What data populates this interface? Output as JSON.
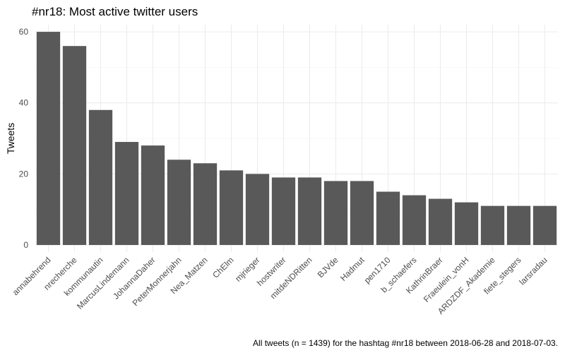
{
  "chart_data": {
    "type": "bar",
    "title": "#nr18: Most active twitter users",
    "xlabel": "",
    "ylabel": "Tweets",
    "caption": "All tweets (n = 1439) for the hashtag #nr18 between 2018-06-28 and 2018-07-03.",
    "categories": [
      "annabehrend",
      "nrecherche",
      "kommunautin",
      "MarcusLindemann",
      "JohannaDaher",
      "PeterMonnerjahn",
      "Nea_Matzen",
      "ChElm",
      "mjrieger",
      "hostwriter",
      "mitdeNDRitten",
      "BJVde",
      "Hadmut",
      "pen1710",
      "b_schaefers",
      "KathrinBraer",
      "Fraeulein_vonH",
      "ARDZDF_Akademie",
      "fiete_stegers",
      "larsradau"
    ],
    "values": [
      60,
      56,
      38,
      29,
      28,
      24,
      23,
      21,
      20,
      19,
      19,
      18,
      18,
      15,
      14,
      13,
      12,
      11,
      11,
      11
    ],
    "ylim": [
      0,
      62
    ],
    "yticks": [
      0,
      20,
      40,
      60
    ],
    "grid": true,
    "legend": "none",
    "bar_color": "#595959"
  }
}
